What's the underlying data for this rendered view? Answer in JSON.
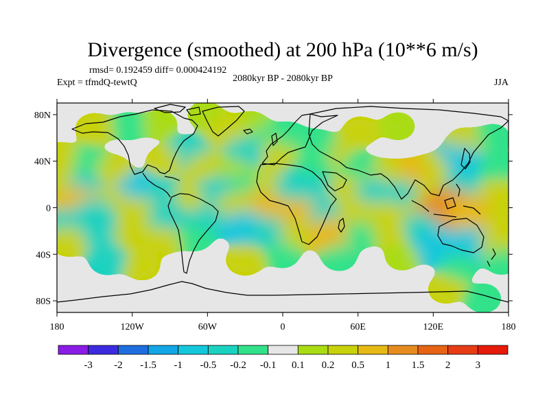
{
  "chart_data": {
    "type": "heatmap",
    "title": "Divergence (smoothed) at 200 hPa (10**6 m/s)",
    "stats": "rmsd= 0.192459 diff= 0.000424192",
    "experiment": "Expt = tfmdQ-tewtQ",
    "period": "2080kyr BP - 2080kyr BP",
    "season": "JJA",
    "x_ticks": [
      "180",
      "120W",
      "60W",
      "0",
      "60E",
      "120E",
      "180"
    ],
    "x_tick_values": [
      -180,
      -120,
      -60,
      0,
      60,
      120,
      180
    ],
    "y_ticks": [
      "80N",
      "40N",
      "0",
      "40S",
      "80S"
    ],
    "y_tick_values": [
      80,
      40,
      0,
      -40,
      -80
    ],
    "xlim": [
      -180,
      180
    ],
    "ylim": [
      -90,
      90
    ],
    "colorbar": {
      "labels": [
        "-3",
        "-2",
        "-1.5",
        "-1",
        "-0.5",
        "-0.2",
        "-0.1",
        "0.1",
        "0.2",
        "0.5",
        "1",
        "1.5",
        "2",
        "3"
      ],
      "levels": [
        -3,
        -2,
        -1.5,
        -1,
        -0.5,
        -0.2,
        -0.1,
        0.1,
        0.2,
        0.5,
        1,
        1.5,
        2,
        3
      ],
      "colors": [
        "#8a1ce6",
        "#3c2ae0",
        "#1e6ee0",
        "#12a6e6",
        "#14c8dc",
        "#1ad2c0",
        "#32e28a",
        "#e6e6e6",
        "#aadc14",
        "#c8d20a",
        "#e6b914",
        "#e68c1e",
        "#e66414",
        "#e63c14",
        "#e61a0a"
      ]
    },
    "background_color": "#e6e6e6",
    "features": [
      {
        "lon": -150,
        "lat": 68,
        "value": 0.3
      },
      {
        "lon": -123,
        "lat": 70,
        "value": -0.15
      },
      {
        "lon": -98,
        "lat": 72,
        "value": 0.15
      },
      {
        "lon": -62,
        "lat": 80,
        "value": 0.15
      },
      {
        "lon": -25,
        "lat": 71,
        "value": 0.15
      },
      {
        "lon": -45,
        "lat": 66,
        "value": 0.4
      },
      {
        "lon": -12,
        "lat": 60,
        "value": -0.15
      },
      {
        "lon": -3,
        "lat": 49,
        "value": 0.3
      },
      {
        "lon": -30,
        "lat": 50,
        "value": -0.3
      },
      {
        "lon": 5,
        "lat": 62,
        "value": -0.15
      },
      {
        "lon": 40,
        "lat": 48,
        "value": 0.3
      },
      {
        "lon": 28,
        "lat": 55,
        "value": -0.2
      },
      {
        "lon": 62,
        "lat": 66,
        "value": 0.2
      },
      {
        "lon": 92,
        "lat": 70,
        "value": 0.15
      },
      {
        "lon": 145,
        "lat": 56,
        "value": 0.25
      },
      {
        "lon": 168,
        "lat": 60,
        "value": -0.15
      },
      {
        "lon": -75,
        "lat": 48,
        "value": -0.4
      },
      {
        "lon": -95,
        "lat": 40,
        "value": 0.2
      },
      {
        "lon": -62,
        "lat": 36,
        "value": 0.25
      },
      {
        "lon": -155,
        "lat": 40,
        "value": -0.2
      },
      {
        "lon": -135,
        "lat": 33,
        "value": 0.2
      },
      {
        "lon": -178,
        "lat": 44,
        "value": 0.2
      },
      {
        "lon": 170,
        "lat": 35,
        "value": -0.2
      },
      {
        "lon": 140,
        "lat": 40,
        "value": -0.6
      },
      {
        "lon": 118,
        "lat": 33,
        "value": 0.3
      },
      {
        "lon": 100,
        "lat": 27,
        "value": 0.5
      },
      {
        "lon": 80,
        "lat": 28,
        "value": 0.4
      },
      {
        "lon": 60,
        "lat": 35,
        "value": -0.2
      },
      {
        "lon": 25,
        "lat": 38,
        "value": -0.15
      },
      {
        "lon": -40,
        "lat": 32,
        "value": 0.15
      },
      {
        "lon": -175,
        "lat": 20,
        "value": 0.35
      },
      {
        "lon": -158,
        "lat": 18,
        "value": -0.25
      },
      {
        "lon": -115,
        "lat": 15,
        "value": -0.6
      },
      {
        "lon": -95,
        "lat": 12,
        "value": -0.3
      },
      {
        "lon": -138,
        "lat": 5,
        "value": 0.4
      },
      {
        "lon": -165,
        "lat": 4,
        "value": 0.6
      },
      {
        "lon": -72,
        "lat": 10,
        "value": 0.3
      },
      {
        "lon": -50,
        "lat": 15,
        "value": -0.5
      },
      {
        "lon": -28,
        "lat": 20,
        "value": -0.2
      },
      {
        "lon": -8,
        "lat": 22,
        "value": 0.3
      },
      {
        "lon": 10,
        "lat": 18,
        "value": -0.5
      },
      {
        "lon": 30,
        "lat": 14,
        "value": -0.3
      },
      {
        "lon": 52,
        "lat": 15,
        "value": 0.4
      },
      {
        "lon": 75,
        "lat": 13,
        "value": -0.5
      },
      {
        "lon": 98,
        "lat": 11,
        "value": -0.4
      },
      {
        "lon": 120,
        "lat": 14,
        "value": 0.3
      },
      {
        "lon": 143,
        "lat": 15,
        "value": -0.5
      },
      {
        "lon": 170,
        "lat": 12,
        "value": 0.3
      },
      {
        "lon": -20,
        "lat": 0,
        "value": 0.8
      },
      {
        "lon": -5,
        "lat": -3,
        "value": 0.5
      },
      {
        "lon": -38,
        "lat": 2,
        "value": 0.35
      },
      {
        "lon": 15,
        "lat": -5,
        "value": 0.5
      },
      {
        "lon": -150,
        "lat": -5,
        "value": -0.5
      },
      {
        "lon": -172,
        "lat": -12,
        "value": -0.3
      },
      {
        "lon": -115,
        "lat": -3,
        "value": 0.35
      },
      {
        "lon": -92,
        "lat": -8,
        "value": -0.4
      },
      {
        "lon": -60,
        "lat": -10,
        "value": -0.3
      },
      {
        "lon": 35,
        "lat": -7,
        "value": -0.3
      },
      {
        "lon": 60,
        "lat": -5,
        "value": 0.4
      },
      {
        "lon": 82,
        "lat": -5,
        "value": 0.3
      },
      {
        "lon": 112,
        "lat": -3,
        "value": 0.4
      },
      {
        "lon": 132,
        "lat": -2,
        "value": 1.2
      },
      {
        "lon": 152,
        "lat": -5,
        "value": 0.9
      },
      {
        "lon": 175,
        "lat": -6,
        "value": 0.3
      },
      {
        "lon": -170,
        "lat": -28,
        "value": 0.4
      },
      {
        "lon": -145,
        "lat": -22,
        "value": -0.4
      },
      {
        "lon": -120,
        "lat": -22,
        "value": 0.35
      },
      {
        "lon": -95,
        "lat": -27,
        "value": 0.25
      },
      {
        "lon": -70,
        "lat": -25,
        "value": -0.2
      },
      {
        "lon": -30,
        "lat": -16,
        "value": -0.6
      },
      {
        "lon": -10,
        "lat": -20,
        "value": -0.4
      },
      {
        "lon": 12,
        "lat": -22,
        "value": 0.3
      },
      {
        "lon": 38,
        "lat": -22,
        "value": 0.6
      },
      {
        "lon": 62,
        "lat": -22,
        "value": -0.2
      },
      {
        "lon": 85,
        "lat": -20,
        "value": 0.2
      },
      {
        "lon": 110,
        "lat": -15,
        "value": -0.3
      },
      {
        "lon": 125,
        "lat": -32,
        "value": -0.8
      },
      {
        "lon": 150,
        "lat": -30,
        "value": -0.6
      },
      {
        "lon": 172,
        "lat": -30,
        "value": 0.4
      },
      {
        "lon": -140,
        "lat": -45,
        "value": -0.25
      },
      {
        "lon": -112,
        "lat": -50,
        "value": 0.2
      },
      {
        "lon": -30,
        "lat": -45,
        "value": 0.3
      },
      {
        "lon": 0,
        "lat": -40,
        "value": -0.15
      },
      {
        "lon": 45,
        "lat": -42,
        "value": -0.2
      },
      {
        "lon": 95,
        "lat": -42,
        "value": 0.15
      },
      {
        "lon": 140,
        "lat": -50,
        "value": -0.2
      },
      {
        "lon": 175,
        "lat": -45,
        "value": -0.2
      },
      {
        "lon": 130,
        "lat": -70,
        "value": 0.2
      },
      {
        "lon": 160,
        "lat": -78,
        "value": -0.2
      }
    ]
  }
}
